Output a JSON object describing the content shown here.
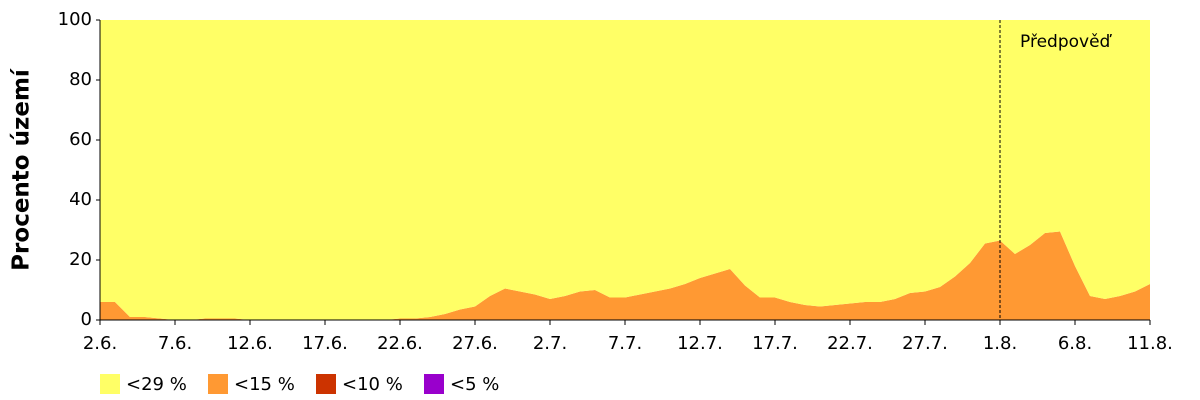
{
  "chart_data": {
    "type": "stacked_area",
    "ylabel": "Procento území",
    "categories": [
      "2.6.",
      null,
      null,
      null,
      null,
      "7.6.",
      null,
      null,
      null,
      null,
      "12.6.",
      null,
      null,
      null,
      null,
      "17.6.",
      null,
      null,
      null,
      null,
      "22.6.",
      null,
      null,
      null,
      null,
      "27.6.",
      null,
      null,
      null,
      null,
      "2.7.",
      null,
      null,
      null,
      null,
      "7.7.",
      null,
      null,
      null,
      null,
      "12.7.",
      null,
      null,
      null,
      null,
      "17.7.",
      null,
      null,
      null,
      null,
      "22.7.",
      null,
      null,
      null,
      null,
      "27.7.",
      null,
      null,
      null,
      null,
      "1.8.",
      null,
      null,
      null,
      null,
      "6.8.",
      null,
      null,
      null,
      null,
      "11.8."
    ],
    "series": [
      {
        "name": "<29 %",
        "color": "#ffff66",
        "values": [
          94,
          94,
          99,
          99,
          99.5,
          100,
          100,
          99.5,
          99.5,
          99.5,
          100,
          100,
          100,
          100,
          100,
          100,
          100,
          100,
          100,
          100,
          99.5,
          99.5,
          99,
          98,
          96.5,
          95.5,
          92,
          89.5,
          90.5,
          91.5,
          93,
          92,
          90.5,
          90,
          92.5,
          92.5,
          91.5,
          90.5,
          89.5,
          88,
          86,
          84.5,
          83,
          88.5,
          92.5,
          92.5,
          94,
          95,
          95.5,
          95,
          94.5,
          94,
          94,
          93,
          91,
          90.5,
          89,
          85.5,
          81,
          74.5,
          73.5,
          78,
          75,
          71,
          70.5,
          82,
          92,
          93,
          92,
          90.5,
          88
        ]
      },
      {
        "name": "<15 %",
        "color": "#ff9933",
        "values": [
          6,
          6,
          1,
          1,
          0.5,
          0,
          0,
          0.5,
          0.5,
          0.5,
          0,
          0,
          0,
          0,
          0,
          0,
          0,
          0,
          0,
          0,
          0.5,
          0.5,
          1,
          2,
          3.5,
          4.5,
          8,
          10.5,
          9.5,
          8.5,
          7,
          8,
          9.5,
          10,
          7.5,
          7.5,
          8.5,
          9.5,
          10.5,
          12,
          14,
          15.5,
          17,
          11.5,
          7.5,
          7.5,
          6,
          5,
          4.5,
          5,
          5.5,
          6,
          6,
          7,
          9,
          9.5,
          11,
          14.5,
          19,
          25.5,
          26.5,
          22,
          25,
          29,
          29.5,
          18,
          8,
          7,
          8,
          9.5,
          12
        ]
      },
      {
        "name": "<10 %",
        "color": "#cc3300",
        "values": [
          0,
          0,
          0,
          0,
          0,
          0,
          0,
          0,
          0,
          0,
          0,
          0,
          0,
          0,
          0,
          0,
          0,
          0,
          0,
          0,
          0,
          0,
          0,
          0,
          0,
          0,
          0,
          0,
          0,
          0,
          0,
          0,
          0,
          0,
          0,
          0,
          0,
          0,
          0,
          0,
          0,
          0,
          0,
          0,
          0,
          0,
          0,
          0,
          0,
          0,
          0,
          0,
          0,
          0,
          0,
          0,
          0,
          0,
          0,
          0,
          0,
          0,
          0,
          0,
          0,
          0,
          0,
          0,
          0,
          0,
          0
        ]
      },
      {
        "name": "<5 %",
        "color": "#9900cc",
        "values": [
          0,
          0,
          0,
          0,
          0,
          0,
          0,
          0,
          0,
          0,
          0,
          0,
          0,
          0,
          0,
          0,
          0,
          0,
          0,
          0,
          0,
          0,
          0,
          0,
          0,
          0,
          0,
          0,
          0,
          0,
          0,
          0,
          0,
          0,
          0,
          0,
          0,
          0,
          0,
          0,
          0,
          0,
          0,
          0,
          0,
          0,
          0,
          0,
          0,
          0,
          0,
          0,
          0,
          0,
          0,
          0,
          0,
          0,
          0,
          0,
          0,
          0,
          0,
          0,
          0,
          0,
          0,
          0,
          0,
          0,
          0
        ]
      }
    ],
    "ylim": [
      0,
      100
    ],
    "yticks": [
      0,
      20,
      40,
      60,
      80,
      100
    ],
    "annotation": {
      "text": "Předpověď",
      "at": "1.8."
    },
    "legend": "bottom-left"
  }
}
